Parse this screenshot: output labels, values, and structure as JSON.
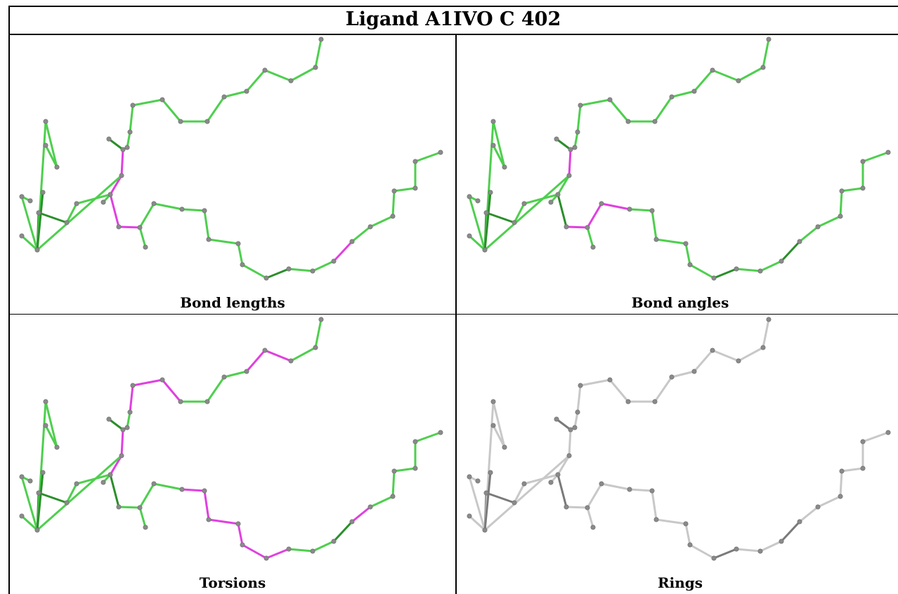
{
  "title": "Ligand A1IVO C 402",
  "colors": {
    "good": "#4ecf4e",
    "good_dark": "#2a8f2a",
    "outlier": "#e040e0",
    "neutral": "#c8c8c8",
    "neutral_dark": "#7a7a7a",
    "atom": "#8a8a8a"
  },
  "panels": [
    {
      "caption": "Bond lengths",
      "scheme": "validation",
      "highlight_bonds": [
        [
          12,
          13
        ],
        [
          13,
          14
        ],
        [
          14,
          15
        ],
        [
          15,
          16
        ],
        [
          26,
          27
        ]
      ]
    },
    {
      "caption": "Bond angles",
      "scheme": "validation",
      "highlight_bonds": [
        [
          11,
          12
        ],
        [
          12,
          13
        ],
        [
          15,
          16
        ],
        [
          16,
          17
        ],
        [
          17,
          18
        ]
      ]
    },
    {
      "caption": "Torsions",
      "scheme": "validation",
      "highlight_bonds": [
        [
          2,
          3
        ],
        [
          3,
          4
        ],
        [
          7,
          8
        ],
        [
          8,
          9
        ],
        [
          9,
          10
        ],
        [
          12,
          13
        ],
        [
          13,
          14
        ],
        [
          18,
          19
        ],
        [
          19,
          20
        ],
        [
          20,
          21
        ],
        [
          21,
          22
        ],
        [
          22,
          23
        ],
        [
          23,
          24
        ],
        [
          27,
          28
        ]
      ]
    },
    {
      "caption": "Rings",
      "scheme": "neutral",
      "highlight_bonds": []
    }
  ]
}
